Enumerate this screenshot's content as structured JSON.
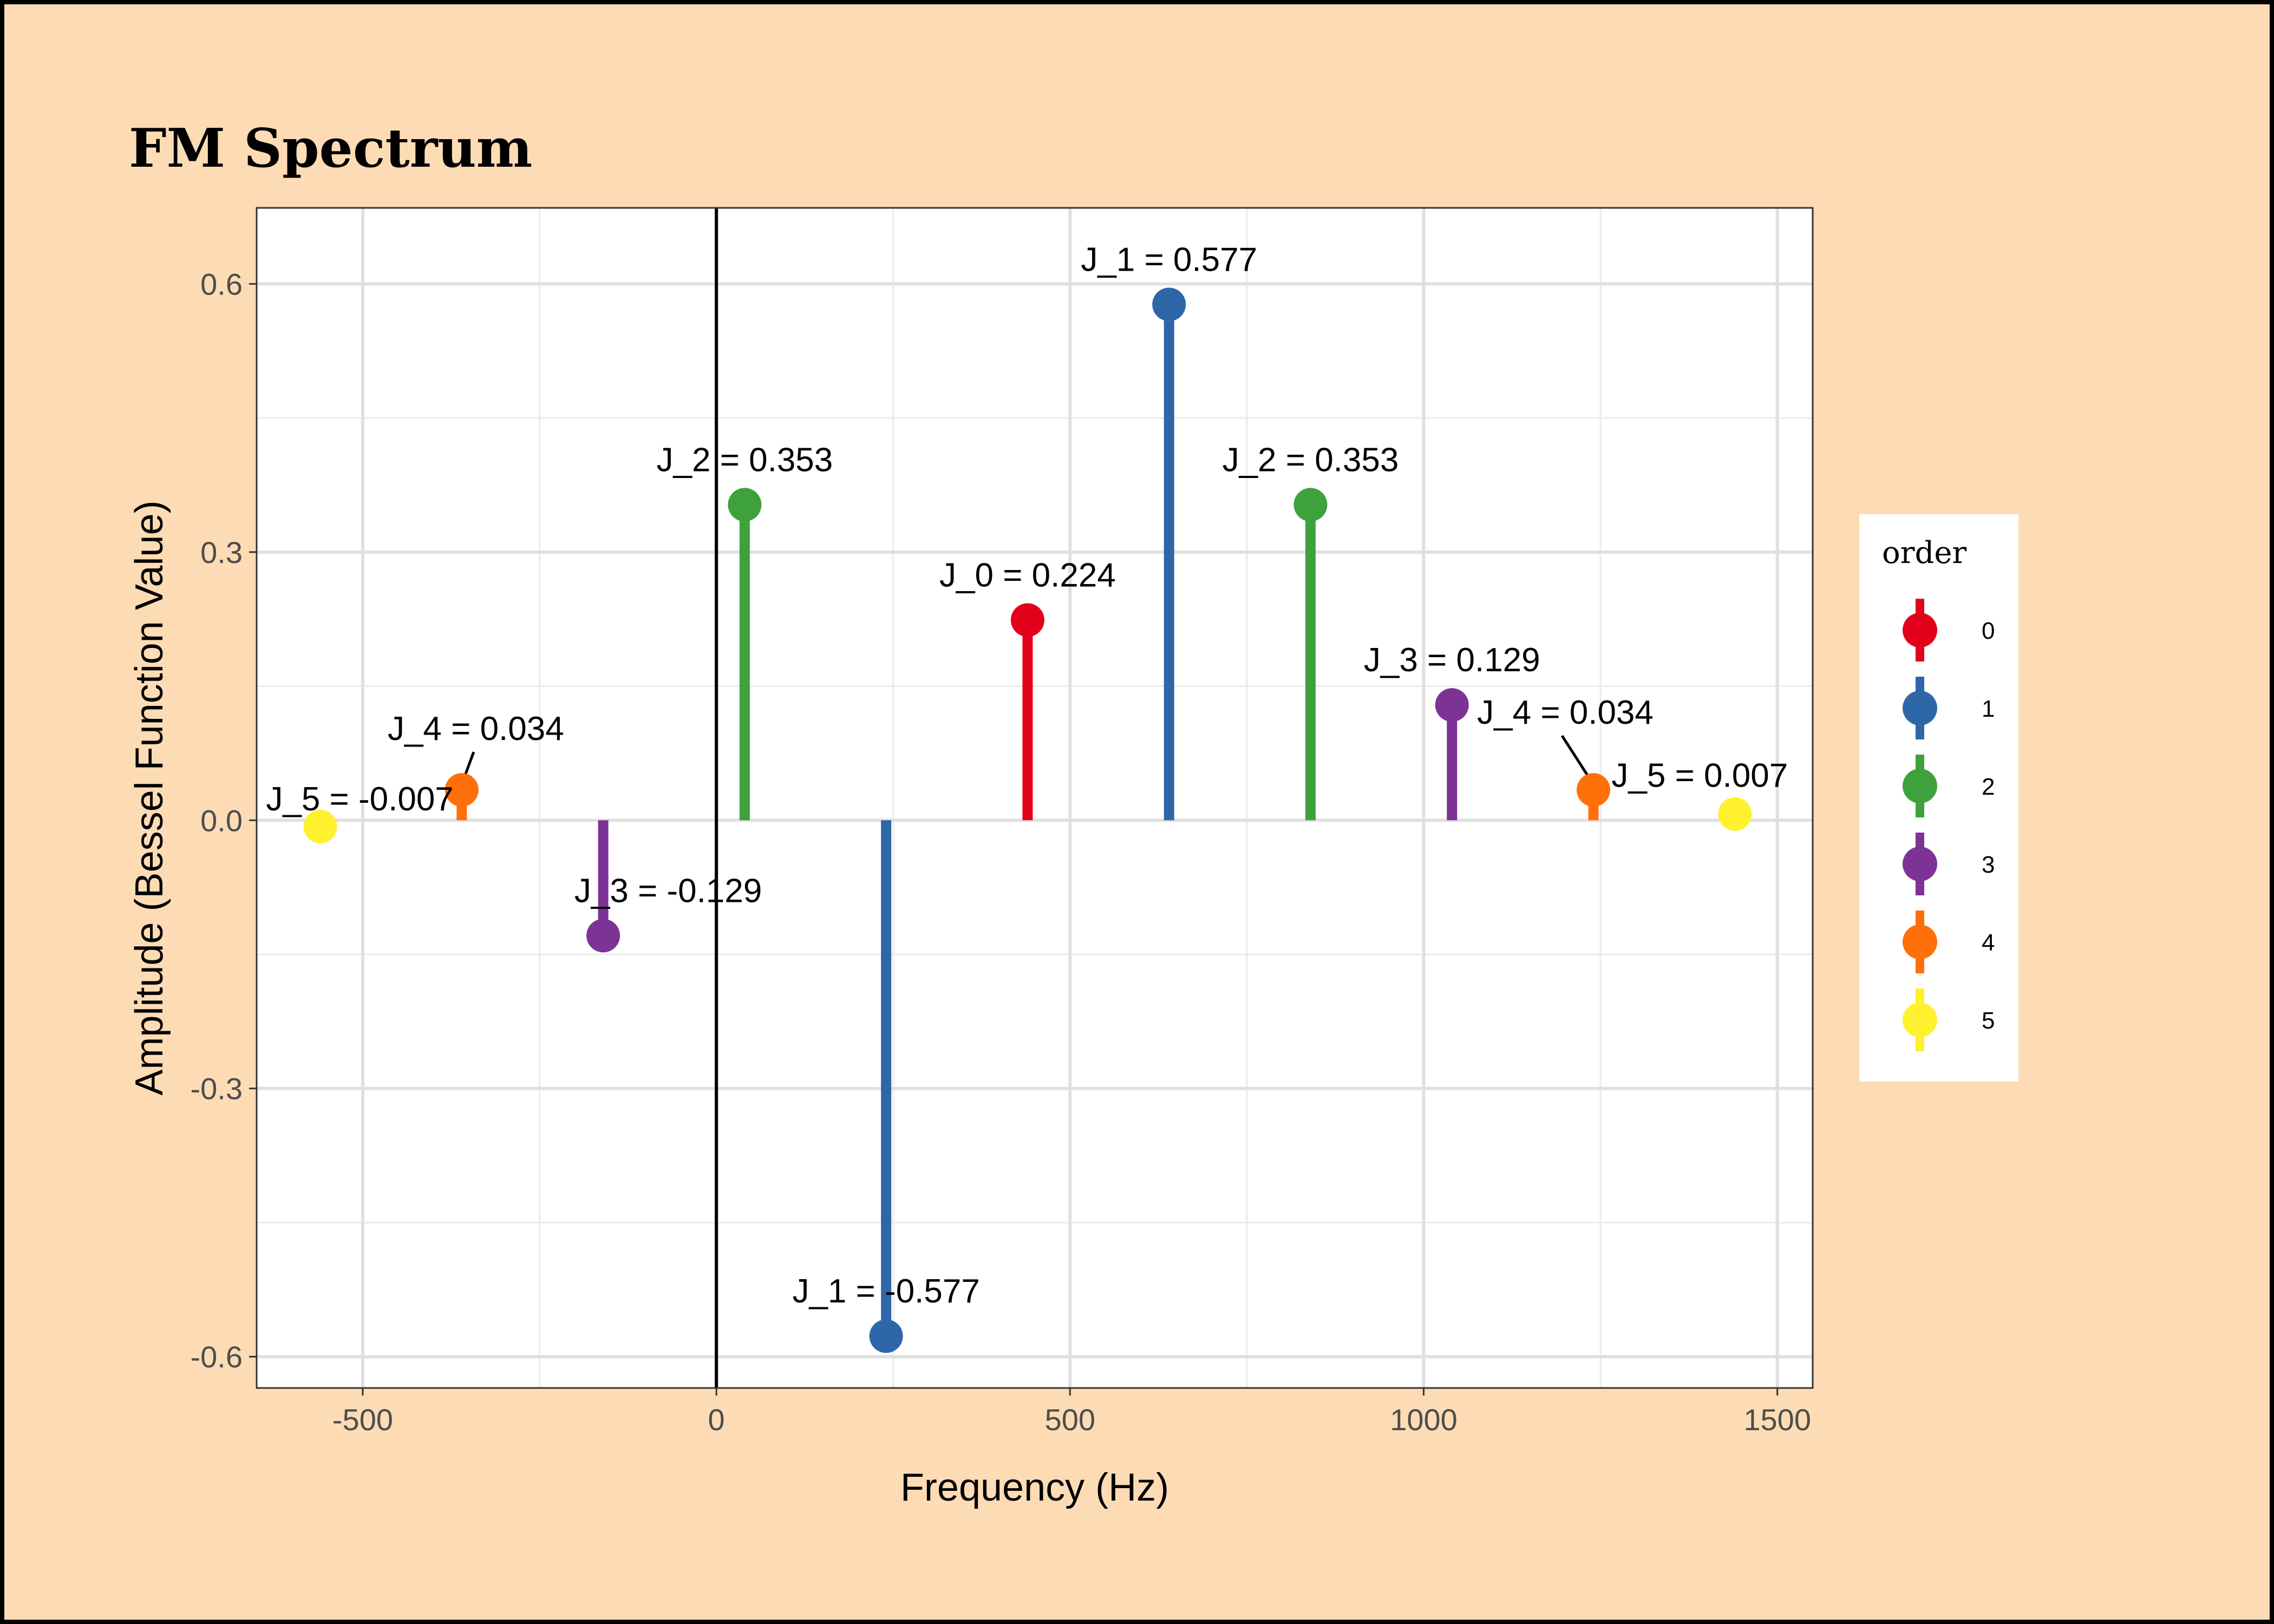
{
  "chart_data": {
    "type": "lollipop",
    "title": "FM Spectrum",
    "xlabel": "Frequency (Hz)",
    "ylabel": "Amplitude (Bessel Function Value)",
    "xlim": [
      -650,
      1550
    ],
    "ylim": [
      -0.635,
      0.685
    ],
    "x_ticks": [
      -500,
      0,
      500,
      1000,
      1500
    ],
    "x_tick_labels": [
      "-500",
      "0",
      "500",
      "1000",
      "1500"
    ],
    "y_ticks": [
      -0.6,
      -0.3,
      0.0,
      0.3,
      0.6
    ],
    "y_tick_labels": [
      "-0.6",
      "-0.3",
      "0.0",
      "0.3",
      "0.6"
    ],
    "grid": true,
    "reference_line_x": 0,
    "legend": {
      "title": "order",
      "position": "right",
      "entries": [
        {
          "label": "0",
          "color": "#E3001B"
        },
        {
          "label": "1",
          "color": "#2E67A8"
        },
        {
          "label": "2",
          "color": "#3FA13C"
        },
        {
          "label": "3",
          "color": "#7D3395"
        },
        {
          "label": "4",
          "color": "#FF6F0A"
        },
        {
          "label": "5",
          "color": "#FFF12E"
        }
      ]
    },
    "points": [
      {
        "x": -560,
        "y": -0.007,
        "order": 5,
        "label": "J_5 = -0.007"
      },
      {
        "x": -360,
        "y": 0.034,
        "order": 4,
        "label": "J_4 = 0.034"
      },
      {
        "x": -160,
        "y": -0.129,
        "order": 3,
        "label": "J_3 = -0.129"
      },
      {
        "x": 40,
        "y": 0.353,
        "order": 2,
        "label": "J_2 = 0.353"
      },
      {
        "x": 240,
        "y": -0.577,
        "order": 1,
        "label": "J_1 = -0.577"
      },
      {
        "x": 440,
        "y": 0.224,
        "order": 0,
        "label": "J_0 = 0.224"
      },
      {
        "x": 640,
        "y": 0.577,
        "order": 1,
        "label": "J_1 = 0.577"
      },
      {
        "x": 840,
        "y": 0.353,
        "order": 2,
        "label": "J_2 = 0.353"
      },
      {
        "x": 1040,
        "y": 0.129,
        "order": 3,
        "label": "J_3 = 0.129"
      },
      {
        "x": 1240,
        "y": 0.034,
        "order": 4,
        "label": "J_4 = 0.034"
      },
      {
        "x": 1440,
        "y": 0.007,
        "order": 5,
        "label": "J_5 = 0.007"
      }
    ]
  }
}
